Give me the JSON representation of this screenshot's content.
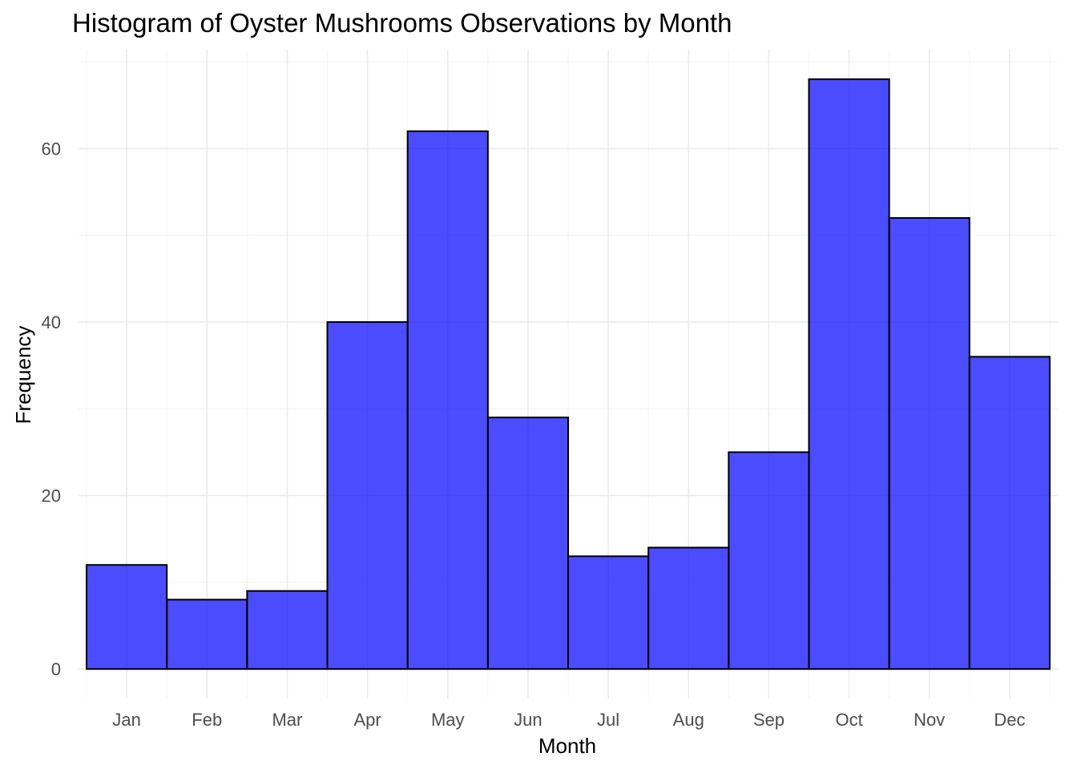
{
  "chart_data": {
    "type": "bar",
    "title": "Histogram of Oyster Mushrooms Observations by Month",
    "xlabel": "Month",
    "ylabel": "Frequency",
    "categories": [
      "Jan",
      "Feb",
      "Mar",
      "Apr",
      "May",
      "Jun",
      "Jul",
      "Aug",
      "Sep",
      "Oct",
      "Nov",
      "Dec"
    ],
    "values": [
      12,
      8,
      9,
      40,
      62,
      29,
      13,
      14,
      25,
      68,
      52,
      36
    ],
    "y_ticks": [
      0,
      20,
      40,
      60
    ],
    "ylim": [
      -3.4,
      71.4
    ],
    "grid": true,
    "legend": "none",
    "bar_fill": "#0000ff",
    "bar_fill_opacity": 0.7,
    "bar_stroke": "#000000"
  }
}
